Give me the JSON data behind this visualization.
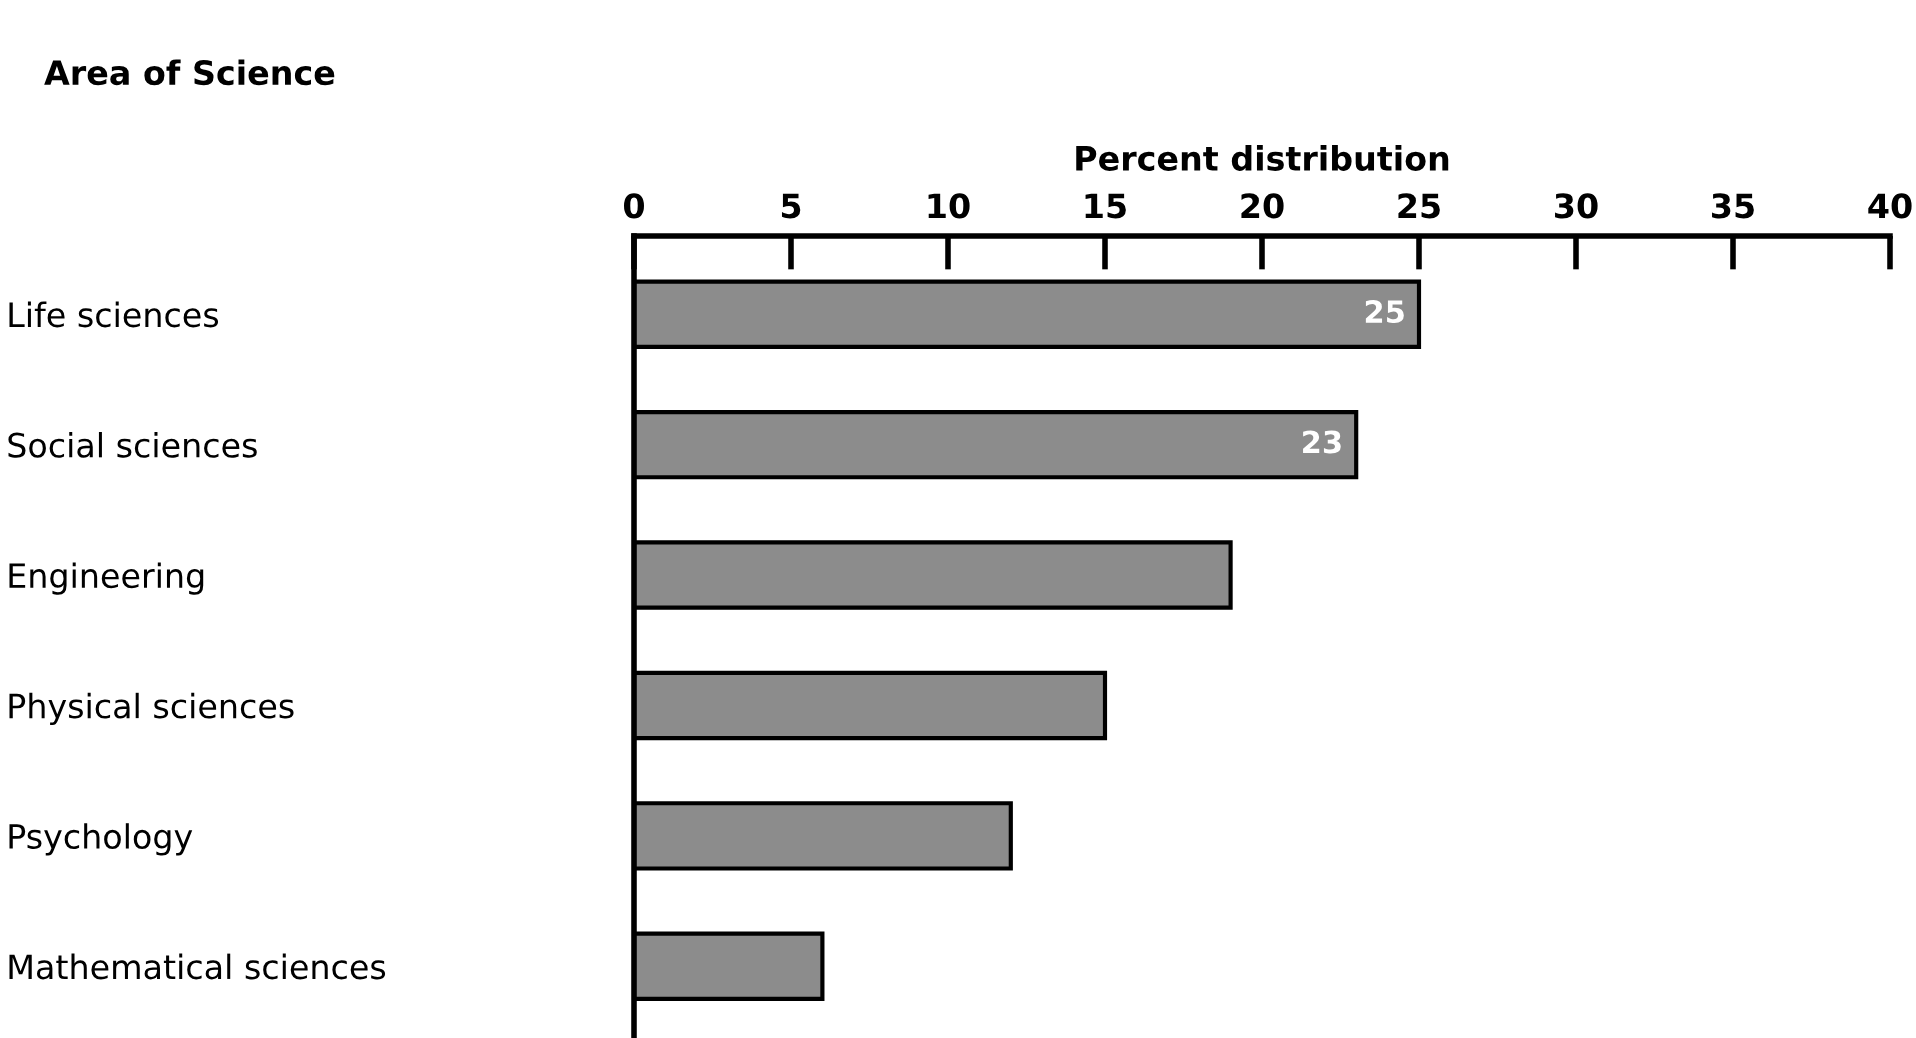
{
  "chart_data": {
    "type": "bar",
    "orientation": "horizontal",
    "xlabel": "Percent distribution",
    "ylabel": "Area of Science",
    "categories": [
      "Life sciences",
      "Social sciences",
      "Engineering",
      "Physical sciences",
      "Psychology",
      "Mathematical sciences"
    ],
    "values": [
      25,
      23,
      19,
      15,
      12,
      6
    ],
    "value_labels": [
      "25",
      "23",
      null,
      null,
      null,
      null
    ],
    "color": "#8c8c8c",
    "xlim": [
      0,
      40
    ],
    "xticks": [
      0,
      5,
      10,
      15,
      20,
      25,
      30,
      35,
      40
    ],
    "grid": false,
    "legend": false
  }
}
